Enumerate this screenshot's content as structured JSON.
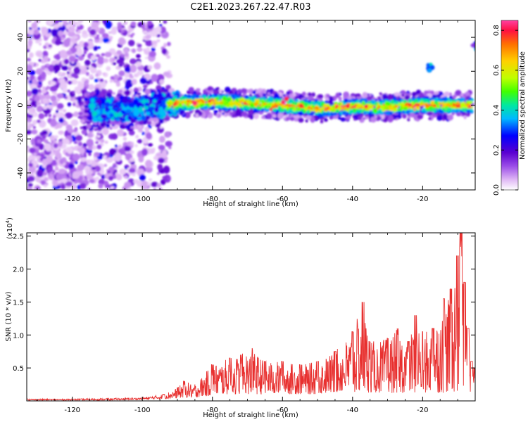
{
  "title": "C2E1.2023.267.22.47.R03",
  "chart_data": [
    {
      "type": "heatmap",
      "xlabel": "Height of straight line (km)",
      "ylabel": "Frequency (Hz)",
      "xlim": [
        -133,
        -5
      ],
      "ylim": [
        -50,
        50
      ],
      "xticks": [
        -120,
        -100,
        -80,
        -60,
        -40,
        -20
      ],
      "yticks": [
        -40,
        -20,
        0,
        20,
        40
      ],
      "grid": false,
      "colorbar": {
        "label": "Normalized spectral amplitude",
        "range": [
          0.0,
          0.85
        ],
        "ticks": [
          "0.0",
          "0.2",
          "0.4",
          "0.6",
          "0.8"
        ],
        "colormap": [
          "#ffffff",
          "#e0b8f5",
          "#9b4de8",
          "#5a00d0",
          "#0000ff",
          "#00b8ff",
          "#00e8a0",
          "#40ff00",
          "#c0ff00",
          "#ffd000",
          "#ff7000",
          "#ff1040",
          "#ff40a0"
        ]
      },
      "features": [
        {
          "name": "broadband noise region",
          "x_range": [
            -133,
            -92
          ],
          "f_range": [
            -50,
            50
          ],
          "amplitude": 0.3
        },
        {
          "name": "signal band",
          "x_range": [
            -115,
            -6
          ],
          "center_freq": [
            [
              -115,
              -3
            ],
            [
              -100,
              -2
            ],
            [
              -90,
              1
            ],
            [
              -80,
              2
            ],
            [
              -70,
              1
            ],
            [
              -60,
              0
            ],
            [
              -50,
              -2
            ],
            [
              -40,
              -1
            ],
            [
              -30,
              -1
            ],
            [
              -20,
              0
            ],
            [
              -10,
              0
            ],
            [
              -6,
              0
            ]
          ],
          "half_width": 4,
          "peak_amplitude": 0.85
        },
        {
          "name": "isolated spot",
          "x": -18,
          "f": 22,
          "amplitude": 0.35
        },
        {
          "name": "isolated spot",
          "x": -5,
          "f": 35,
          "amplitude": 0.3
        }
      ]
    },
    {
      "type": "line",
      "xlabel": "Height of straight line (km)",
      "ylabel": "SNR (10 * v/v)",
      "y_multiplier": "(x10",
      "y_multiplier_exp": "4",
      "xlim": [
        -133,
        -5
      ],
      "ylim": [
        0,
        2.55
      ],
      "xticks": [
        -120,
        -100,
        -80,
        -60,
        -40,
        -20
      ],
      "yticks": [
        "0.5",
        "1.0",
        "1.5",
        "2.0",
        "2.5"
      ],
      "series_color": "#e8302f",
      "envelope": {
        "x": [
          -133,
          -120,
          -110,
          -100,
          -94,
          -90,
          -88,
          -85,
          -80,
          -75,
          -72,
          -69,
          -65,
          -60,
          -55,
          -50,
          -45,
          -40,
          -37,
          -35,
          -30,
          -27,
          -24,
          -22,
          -20,
          -17,
          -14,
          -12,
          -10,
          -9,
          -8,
          -7,
          -6,
          -5
        ],
        "low": [
          0.01,
          0.01,
          0.01,
          0.02,
          0.03,
          0.04,
          0.05,
          0.05,
          0.08,
          0.1,
          0.1,
          0.1,
          0.1,
          0.1,
          0.1,
          0.1,
          0.12,
          0.12,
          0.12,
          0.12,
          0.12,
          0.12,
          0.12,
          0.12,
          0.12,
          0.12,
          0.12,
          0.14,
          0.12,
          0.15,
          0.12,
          0.12,
          0.1,
          0.15
        ],
        "high": [
          0.03,
          0.03,
          0.04,
          0.05,
          0.1,
          0.2,
          0.3,
          0.25,
          0.55,
          0.65,
          0.7,
          0.8,
          0.6,
          0.6,
          0.55,
          0.6,
          0.75,
          1.05,
          1.5,
          0.9,
          0.95,
          1.1,
          0.9,
          1.3,
          1.05,
          1.1,
          1.55,
          1.7,
          2.2,
          2.55,
          1.8,
          1.1,
          0.6,
          0.5
        ]
      }
    }
  ]
}
